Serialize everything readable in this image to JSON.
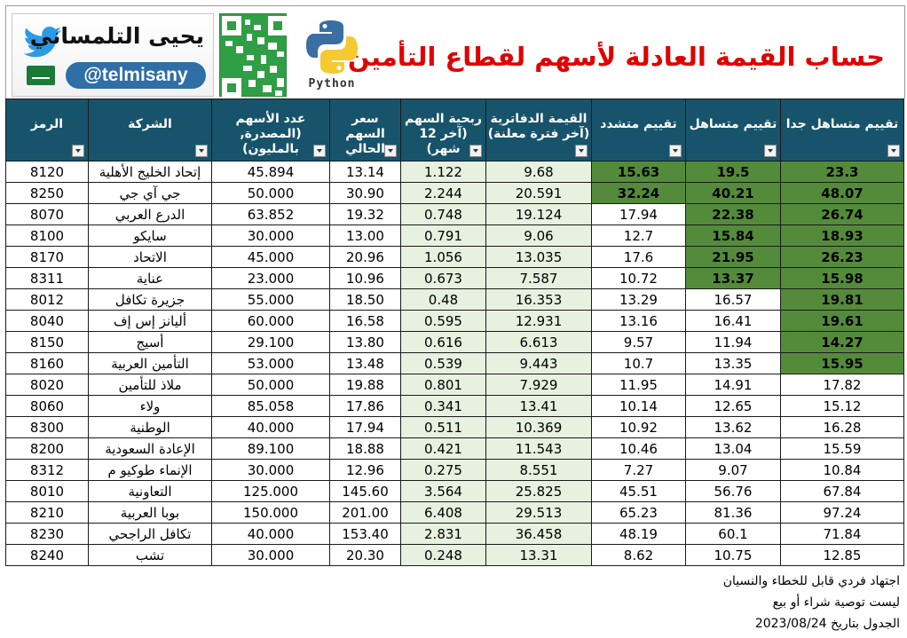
{
  "header": {
    "title": "حساب القيمة العادلة لأسهم لقطاع التأمين",
    "author_name": "يحيى التلمساني",
    "author_handle": "@telmisany",
    "python_label": "Python",
    "icons": [
      "twitter-icon",
      "saudi-flag-icon",
      "qr-code",
      "python-logo"
    ]
  },
  "table": {
    "headers": {
      "code": "الرمز",
      "company": "الشركة",
      "shares": "عدد الأسهم (المصدرة, بالمليون)",
      "price": "سعر السهم الحالي",
      "eps": "ربحية السهم (آخر 12 شهر)",
      "book": "القيمة الدفاترية (آخر فترة معلنة)",
      "strict": "تقييم متشدد",
      "lenient": "تقييم متساهل",
      "very_lenient": "تقييم متساهل جدا"
    },
    "rows": [
      {
        "code": "8120",
        "company": "إتحاد الخليج الأهلية",
        "shares": "45.894",
        "price": "13.14",
        "eps": "1.122",
        "book": "9.68",
        "strict": "15.63",
        "lenient": "19.5",
        "very_lenient": "23.3",
        "strict_above": true,
        "lenient_above": true,
        "very_lenient_above": true
      },
      {
        "code": "8250",
        "company": "جي آي جي",
        "shares": "50.000",
        "price": "30.90",
        "eps": "2.244",
        "book": "20.591",
        "strict": "32.24",
        "lenient": "40.21",
        "very_lenient": "48.07",
        "strict_above": true,
        "lenient_above": true,
        "very_lenient_above": true
      },
      {
        "code": "8070",
        "company": "الدرع العربي",
        "shares": "63.852",
        "price": "19.32",
        "eps": "0.748",
        "book": "19.124",
        "strict": "17.94",
        "lenient": "22.38",
        "very_lenient": "26.74",
        "strict_above": false,
        "lenient_above": true,
        "very_lenient_above": true
      },
      {
        "code": "8100",
        "company": "سايكو",
        "shares": "30.000",
        "price": "13.00",
        "eps": "0.791",
        "book": "9.06",
        "strict": "12.7",
        "lenient": "15.84",
        "very_lenient": "18.93",
        "strict_above": false,
        "lenient_above": true,
        "very_lenient_above": true
      },
      {
        "code": "8170",
        "company": "الاتحاد",
        "shares": "45.000",
        "price": "20.96",
        "eps": "1.056",
        "book": "13.035",
        "strict": "17.6",
        "lenient": "21.95",
        "very_lenient": "26.23",
        "strict_above": false,
        "lenient_above": true,
        "very_lenient_above": true
      },
      {
        "code": "8311",
        "company": "عناية",
        "shares": "23.000",
        "price": "10.96",
        "eps": "0.673",
        "book": "7.587",
        "strict": "10.72",
        "lenient": "13.37",
        "very_lenient": "15.98",
        "strict_above": false,
        "lenient_above": true,
        "very_lenient_above": true
      },
      {
        "code": "8012",
        "company": "جزيرة تكافل",
        "shares": "55.000",
        "price": "18.50",
        "eps": "0.48",
        "book": "16.353",
        "strict": "13.29",
        "lenient": "16.57",
        "very_lenient": "19.81",
        "strict_above": false,
        "lenient_above": false,
        "very_lenient_above": true
      },
      {
        "code": "8040",
        "company": "أليانز إس إف",
        "shares": "60.000",
        "price": "16.58",
        "eps": "0.595",
        "book": "12.931",
        "strict": "13.16",
        "lenient": "16.41",
        "very_lenient": "19.61",
        "strict_above": false,
        "lenient_above": false,
        "very_lenient_above": true
      },
      {
        "code": "8150",
        "company": "أسيج",
        "shares": "29.100",
        "price": "13.80",
        "eps": "0.616",
        "book": "6.613",
        "strict": "9.57",
        "lenient": "11.94",
        "very_lenient": "14.27",
        "strict_above": false,
        "lenient_above": false,
        "very_lenient_above": true
      },
      {
        "code": "8160",
        "company": "التأمين العربية",
        "shares": "53.000",
        "price": "13.48",
        "eps": "0.539",
        "book": "9.443",
        "strict": "10.7",
        "lenient": "13.35",
        "very_lenient": "15.95",
        "strict_above": false,
        "lenient_above": false,
        "very_lenient_above": true
      },
      {
        "code": "8020",
        "company": "ملاذ للتأمين",
        "shares": "50.000",
        "price": "19.88",
        "eps": "0.801",
        "book": "7.929",
        "strict": "11.95",
        "lenient": "14.91",
        "very_lenient": "17.82",
        "strict_above": false,
        "lenient_above": false,
        "very_lenient_above": false
      },
      {
        "code": "8060",
        "company": "ولاء",
        "shares": "85.058",
        "price": "17.86",
        "eps": "0.341",
        "book": "13.41",
        "strict": "10.14",
        "lenient": "12.65",
        "very_lenient": "15.12",
        "strict_above": false,
        "lenient_above": false,
        "very_lenient_above": false
      },
      {
        "code": "8300",
        "company": "الوطنية",
        "shares": "40.000",
        "price": "17.94",
        "eps": "0.511",
        "book": "10.369",
        "strict": "10.92",
        "lenient": "13.62",
        "very_lenient": "16.28",
        "strict_above": false,
        "lenient_above": false,
        "very_lenient_above": false
      },
      {
        "code": "8200",
        "company": "الإعادة السعودية",
        "shares": "89.100",
        "price": "18.88",
        "eps": "0.421",
        "book": "11.543",
        "strict": "10.46",
        "lenient": "13.04",
        "very_lenient": "15.59",
        "strict_above": false,
        "lenient_above": false,
        "very_lenient_above": false
      },
      {
        "code": "8312",
        "company": "الإنماء طوكيو م",
        "shares": "30.000",
        "price": "12.96",
        "eps": "0.275",
        "book": "8.551",
        "strict": "7.27",
        "lenient": "9.07",
        "very_lenient": "10.84",
        "strict_above": false,
        "lenient_above": false,
        "very_lenient_above": false
      },
      {
        "code": "8010",
        "company": "التعاونية",
        "shares": "125.000",
        "price": "145.60",
        "eps": "3.564",
        "book": "25.825",
        "strict": "45.51",
        "lenient": "56.76",
        "very_lenient": "67.84",
        "strict_above": false,
        "lenient_above": false,
        "very_lenient_above": false
      },
      {
        "code": "8210",
        "company": "بوبا العربية",
        "shares": "150.000",
        "price": "201.00",
        "eps": "6.408",
        "book": "29.513",
        "strict": "65.23",
        "lenient": "81.36",
        "very_lenient": "97.24",
        "strict_above": false,
        "lenient_above": false,
        "very_lenient_above": false
      },
      {
        "code": "8230",
        "company": "تكافل الراجحي",
        "shares": "40.000",
        "price": "153.40",
        "eps": "2.831",
        "book": "36.458",
        "strict": "48.19",
        "lenient": "60.1",
        "very_lenient": "71.84",
        "strict_above": false,
        "lenient_above": false,
        "very_lenient_above": false
      },
      {
        "code": "8240",
        "company": "تشب",
        "shares": "30.000",
        "price": "20.30",
        "eps": "0.248",
        "book": "13.31",
        "strict": "8.62",
        "lenient": "10.75",
        "very_lenient": "12.85",
        "strict_above": false,
        "lenient_above": false,
        "very_lenient_above": false
      }
    ]
  },
  "colors": {
    "header_bg": "#17546b",
    "above_price_bg": "#548b3b",
    "below_price_text": "#e0405a",
    "input_col_bg": "#e6f1df",
    "title": "#e00000"
  },
  "notes": {
    "line1": "اجتهاد فردي قابل للخطاء والنسيان",
    "line2": "ليست توصية شراء أو بيع",
    "line3": "الجدول بتاريخ 2023/08/24"
  }
}
